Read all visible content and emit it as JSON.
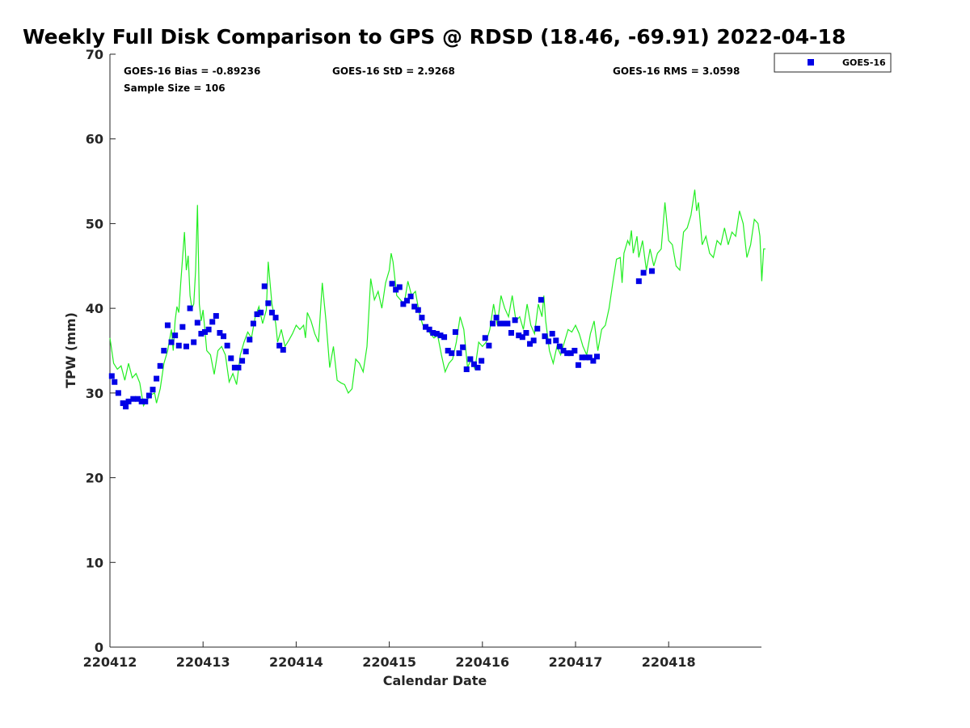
{
  "chart_data": {
    "type": "scatter+line",
    "title": "Weekly Full Disk Comparison to GPS @ RDSD (18.46, -69.91) 2022-04-18",
    "xlabel": "Calendar Date",
    "ylabel": "TPW (mm)",
    "xlim": [
      0,
      7
    ],
    "ylim": [
      0,
      70
    ],
    "x_ticks": [
      {
        "value": 0,
        "label": "220412"
      },
      {
        "value": 1,
        "label": "220413"
      },
      {
        "value": 2,
        "label": "220414"
      },
      {
        "value": 3,
        "label": "220415"
      },
      {
        "value": 4,
        "label": "220416"
      },
      {
        "value": 5,
        "label": "220417"
      },
      {
        "value": 6,
        "label": "220418"
      }
    ],
    "y_ticks": [
      0,
      10,
      20,
      30,
      40,
      50,
      60,
      70
    ],
    "stats": {
      "bias": "GOES-16 Bias = -0.89236",
      "std": "GOES-16 StD = 2.9268",
      "rms": "GOES-16 RMS = 3.0598",
      "sample": "Sample Size = 106"
    },
    "legend": [
      {
        "name": "GOES-16",
        "color": "#0000e6",
        "marker": "square"
      }
    ],
    "legend_position": "outside-top-right",
    "series": [
      {
        "name": "GPS",
        "color": "#22ee22",
        "style": "line",
        "points": [
          [
            0.0,
            36.5
          ],
          [
            0.04,
            33.5
          ],
          [
            0.08,
            32.8
          ],
          [
            0.12,
            33.2
          ],
          [
            0.16,
            31.5
          ],
          [
            0.2,
            33.5
          ],
          [
            0.24,
            31.8
          ],
          [
            0.28,
            32.3
          ],
          [
            0.32,
            31.2
          ],
          [
            0.36,
            28.5
          ],
          [
            0.4,
            29.2
          ],
          [
            0.44,
            29.8
          ],
          [
            0.48,
            30.0
          ],
          [
            0.5,
            28.8
          ],
          [
            0.54,
            30.5
          ],
          [
            0.58,
            33.5
          ],
          [
            0.62,
            35.0
          ],
          [
            0.66,
            37.5
          ],
          [
            0.68,
            35.0
          ],
          [
            0.7,
            38.5
          ],
          [
            0.72,
            40.2
          ],
          [
            0.74,
            39.5
          ],
          [
            0.76,
            43.0
          ],
          [
            0.8,
            49.0
          ],
          [
            0.82,
            44.5
          ],
          [
            0.84,
            46.2
          ],
          [
            0.86,
            41.5
          ],
          [
            0.88,
            40.0
          ],
          [
            0.9,
            40.5
          ],
          [
            0.92,
            44.5
          ],
          [
            0.94,
            52.2
          ],
          [
            0.96,
            40.5
          ],
          [
            0.98,
            38.5
          ],
          [
            1.0,
            39.8
          ],
          [
            1.04,
            35.0
          ],
          [
            1.08,
            34.5
          ],
          [
            1.12,
            32.2
          ],
          [
            1.16,
            35.0
          ],
          [
            1.2,
            35.5
          ],
          [
            1.24,
            34.5
          ],
          [
            1.28,
            31.3
          ],
          [
            1.32,
            32.3
          ],
          [
            1.36,
            31.0
          ],
          [
            1.4,
            34.5
          ],
          [
            1.44,
            36.0
          ],
          [
            1.48,
            37.2
          ],
          [
            1.52,
            36.5
          ],
          [
            1.56,
            39.0
          ],
          [
            1.6,
            40.2
          ],
          [
            1.64,
            38.2
          ],
          [
            1.68,
            39.8
          ],
          [
            1.7,
            45.5
          ],
          [
            1.74,
            40.5
          ],
          [
            1.78,
            38.2
          ],
          [
            1.8,
            36.0
          ],
          [
            1.84,
            37.5
          ],
          [
            1.88,
            35.5
          ],
          [
            1.92,
            36.2
          ],
          [
            1.96,
            37.0
          ],
          [
            2.0,
            38.0
          ],
          [
            2.04,
            37.5
          ],
          [
            2.08,
            38.0
          ],
          [
            2.1,
            36.5
          ],
          [
            2.12,
            39.5
          ],
          [
            2.16,
            38.5
          ],
          [
            2.2,
            37.0
          ],
          [
            2.24,
            36.0
          ],
          [
            2.28,
            43.0
          ],
          [
            2.32,
            38.5
          ],
          [
            2.36,
            33.0
          ],
          [
            2.4,
            35.5
          ],
          [
            2.44,
            31.5
          ],
          [
            2.48,
            31.2
          ],
          [
            2.52,
            31.0
          ],
          [
            2.56,
            30.0
          ],
          [
            2.6,
            30.5
          ],
          [
            2.64,
            34.0
          ],
          [
            2.68,
            33.5
          ],
          [
            2.72,
            32.5
          ],
          [
            2.76,
            35.5
          ],
          [
            2.8,
            43.5
          ],
          [
            2.84,
            41.0
          ],
          [
            2.88,
            42.0
          ],
          [
            2.92,
            40.0
          ],
          [
            2.96,
            43.0
          ],
          [
            3.0,
            44.5
          ],
          [
            3.02,
            46.5
          ],
          [
            3.04,
            45.5
          ],
          [
            3.08,
            41.5
          ],
          [
            3.12,
            41.0
          ],
          [
            3.16,
            40.5
          ],
          [
            3.2,
            43.2
          ],
          [
            3.24,
            41.5
          ],
          [
            3.28,
            42.0
          ],
          [
            3.32,
            39.5
          ],
          [
            3.36,
            38.0
          ],
          [
            3.4,
            37.8
          ],
          [
            3.44,
            37.0
          ],
          [
            3.48,
            36.5
          ],
          [
            3.52,
            36.8
          ],
          [
            3.56,
            34.5
          ],
          [
            3.6,
            32.5
          ],
          [
            3.64,
            33.5
          ],
          [
            3.68,
            34.0
          ],
          [
            3.72,
            36.0
          ],
          [
            3.76,
            39.0
          ],
          [
            3.8,
            37.5
          ],
          [
            3.84,
            33.0
          ],
          [
            3.88,
            34.0
          ],
          [
            3.92,
            32.8
          ],
          [
            3.96,
            36.0
          ],
          [
            4.0,
            35.5
          ],
          [
            4.04,
            36.0
          ],
          [
            4.08,
            37.5
          ],
          [
            4.12,
            40.5
          ],
          [
            4.16,
            38.0
          ],
          [
            4.2,
            41.5
          ],
          [
            4.24,
            40.0
          ],
          [
            4.28,
            39.0
          ],
          [
            4.32,
            41.5
          ],
          [
            4.36,
            38.5
          ],
          [
            4.4,
            39.0
          ],
          [
            4.44,
            37.5
          ],
          [
            4.48,
            40.5
          ],
          [
            4.52,
            38.0
          ],
          [
            4.56,
            37.0
          ],
          [
            4.6,
            40.5
          ],
          [
            4.64,
            39.0
          ],
          [
            4.66,
            41.5
          ],
          [
            4.68,
            38.5
          ],
          [
            4.72,
            35.0
          ],
          [
            4.76,
            33.5
          ],
          [
            4.8,
            35.5
          ],
          [
            4.84,
            34.5
          ],
          [
            4.88,
            36.0
          ],
          [
            4.92,
            37.5
          ],
          [
            4.96,
            37.2
          ],
          [
            5.0,
            38.0
          ],
          [
            5.04,
            37.0
          ],
          [
            5.08,
            35.5
          ],
          [
            5.12,
            34.5
          ],
          [
            5.16,
            37.0
          ],
          [
            5.2,
            38.5
          ],
          [
            5.24,
            35.0
          ],
          [
            5.28,
            37.5
          ],
          [
            5.32,
            38.0
          ],
          [
            5.36,
            40.0
          ],
          [
            5.4,
            43.0
          ],
          [
            5.44,
            45.8
          ],
          [
            5.48,
            46.0
          ],
          [
            5.5,
            43.0
          ],
          [
            5.52,
            46.5
          ],
          [
            5.56,
            48.0
          ],
          [
            5.58,
            47.5
          ],
          [
            5.6,
            49.2
          ],
          [
            5.62,
            46.5
          ],
          [
            5.66,
            48.5
          ],
          [
            5.68,
            46.0
          ],
          [
            5.72,
            48.0
          ],
          [
            5.76,
            44.5
          ],
          [
            5.8,
            47.0
          ],
          [
            5.84,
            45.0
          ],
          [
            5.88,
            46.5
          ],
          [
            5.92,
            47.0
          ],
          [
            5.96,
            52.5
          ],
          [
            6.0,
            48.0
          ],
          [
            6.04,
            47.5
          ],
          [
            6.08,
            45.0
          ],
          [
            6.12,
            44.5
          ],
          [
            6.16,
            49.0
          ],
          [
            6.2,
            49.5
          ],
          [
            6.24,
            51.0
          ],
          [
            6.28,
            54.0
          ],
          [
            6.3,
            51.5
          ],
          [
            6.32,
            52.5
          ],
          [
            6.36,
            47.5
          ],
          [
            6.4,
            48.5
          ],
          [
            6.44,
            46.5
          ],
          [
            6.48,
            46.0
          ],
          [
            6.52,
            48.0
          ],
          [
            6.56,
            47.5
          ],
          [
            6.6,
            49.5
          ],
          [
            6.64,
            47.5
          ],
          [
            6.68,
            49.0
          ],
          [
            6.72,
            48.5
          ],
          [
            6.76,
            51.5
          ],
          [
            6.8,
            50.0
          ],
          [
            6.84,
            46.0
          ],
          [
            6.88,
            47.5
          ],
          [
            6.92,
            50.5
          ],
          [
            6.96,
            50.0
          ],
          [
            6.98,
            48.5
          ],
          [
            7.0,
            43.2
          ],
          [
            7.02,
            47.0
          ],
          [
            7.04,
            47.0
          ]
        ]
      },
      {
        "name": "GOES-16",
        "color": "#0000e6",
        "style": "markers",
        "points": [
          [
            0.02,
            32.0
          ],
          [
            0.05,
            31.3
          ],
          [
            0.09,
            30.0
          ],
          [
            0.14,
            28.8
          ],
          [
            0.17,
            28.4
          ],
          [
            0.2,
            29.0
          ],
          [
            0.25,
            29.3
          ],
          [
            0.3,
            29.3
          ],
          [
            0.34,
            29.0
          ],
          [
            0.38,
            29.0
          ],
          [
            0.42,
            29.7
          ],
          [
            0.46,
            30.4
          ],
          [
            0.5,
            31.7
          ],
          [
            0.54,
            33.2
          ],
          [
            0.58,
            35.0
          ],
          [
            0.62,
            38.0
          ],
          [
            0.66,
            36.0
          ],
          [
            0.7,
            36.8
          ],
          [
            0.74,
            35.6
          ],
          [
            0.78,
            37.8
          ],
          [
            0.82,
            35.5
          ],
          [
            0.86,
            40.0
          ],
          [
            0.9,
            36.0
          ],
          [
            0.94,
            38.3
          ],
          [
            0.98,
            37.0
          ],
          [
            1.02,
            37.2
          ],
          [
            1.06,
            37.5
          ],
          [
            1.1,
            38.4
          ],
          [
            1.14,
            39.1
          ],
          [
            1.18,
            37.1
          ],
          [
            1.22,
            36.7
          ],
          [
            1.26,
            35.6
          ],
          [
            1.3,
            34.1
          ],
          [
            1.34,
            33.0
          ],
          [
            1.38,
            33.0
          ],
          [
            1.42,
            33.8
          ],
          [
            1.46,
            34.9
          ],
          [
            1.5,
            36.3
          ],
          [
            1.54,
            38.2
          ],
          [
            1.58,
            39.3
          ],
          [
            1.62,
            39.5
          ],
          [
            1.66,
            42.6
          ],
          [
            1.7,
            40.6
          ],
          [
            1.74,
            39.5
          ],
          [
            1.78,
            38.9
          ],
          [
            1.82,
            35.6
          ],
          [
            1.86,
            35.1
          ],
          [
            3.03,
            42.9
          ],
          [
            3.07,
            42.2
          ],
          [
            3.11,
            42.5
          ],
          [
            3.15,
            40.5
          ],
          [
            3.19,
            40.9
          ],
          [
            3.23,
            41.4
          ],
          [
            3.27,
            40.2
          ],
          [
            3.31,
            39.8
          ],
          [
            3.35,
            38.9
          ],
          [
            3.39,
            37.8
          ],
          [
            3.43,
            37.5
          ],
          [
            3.47,
            37.1
          ],
          [
            3.51,
            37.0
          ],
          [
            3.55,
            36.8
          ],
          [
            3.59,
            36.6
          ],
          [
            3.63,
            35.0
          ],
          [
            3.67,
            34.7
          ],
          [
            3.71,
            37.2
          ],
          [
            3.75,
            34.7
          ],
          [
            3.79,
            35.4
          ],
          [
            3.83,
            32.8
          ],
          [
            3.87,
            34.0
          ],
          [
            3.91,
            33.4
          ],
          [
            3.95,
            33.0
          ],
          [
            3.99,
            33.8
          ],
          [
            4.03,
            36.5
          ],
          [
            4.07,
            35.6
          ],
          [
            4.11,
            38.2
          ],
          [
            4.15,
            38.9
          ],
          [
            4.19,
            38.2
          ],
          [
            4.23,
            38.2
          ],
          [
            4.27,
            38.2
          ],
          [
            4.31,
            37.1
          ],
          [
            4.35,
            38.6
          ],
          [
            4.39,
            36.8
          ],
          [
            4.43,
            36.6
          ],
          [
            4.47,
            37.1
          ],
          [
            4.51,
            35.8
          ],
          [
            4.55,
            36.2
          ],
          [
            4.59,
            37.6
          ],
          [
            4.63,
            41.0
          ],
          [
            4.67,
            36.7
          ],
          [
            4.71,
            36.1
          ],
          [
            4.75,
            37.0
          ],
          [
            4.79,
            36.2
          ],
          [
            4.83,
            35.5
          ],
          [
            4.87,
            35.0
          ],
          [
            4.91,
            34.7
          ],
          [
            4.95,
            34.7
          ],
          [
            4.99,
            35.0
          ],
          [
            5.03,
            33.3
          ],
          [
            5.07,
            34.2
          ],
          [
            5.11,
            34.2
          ],
          [
            5.15,
            34.2
          ],
          [
            5.19,
            33.8
          ],
          [
            5.23,
            34.3
          ],
          [
            5.68,
            43.2
          ],
          [
            5.73,
            44.2
          ],
          [
            5.82,
            44.4
          ]
        ]
      }
    ]
  }
}
